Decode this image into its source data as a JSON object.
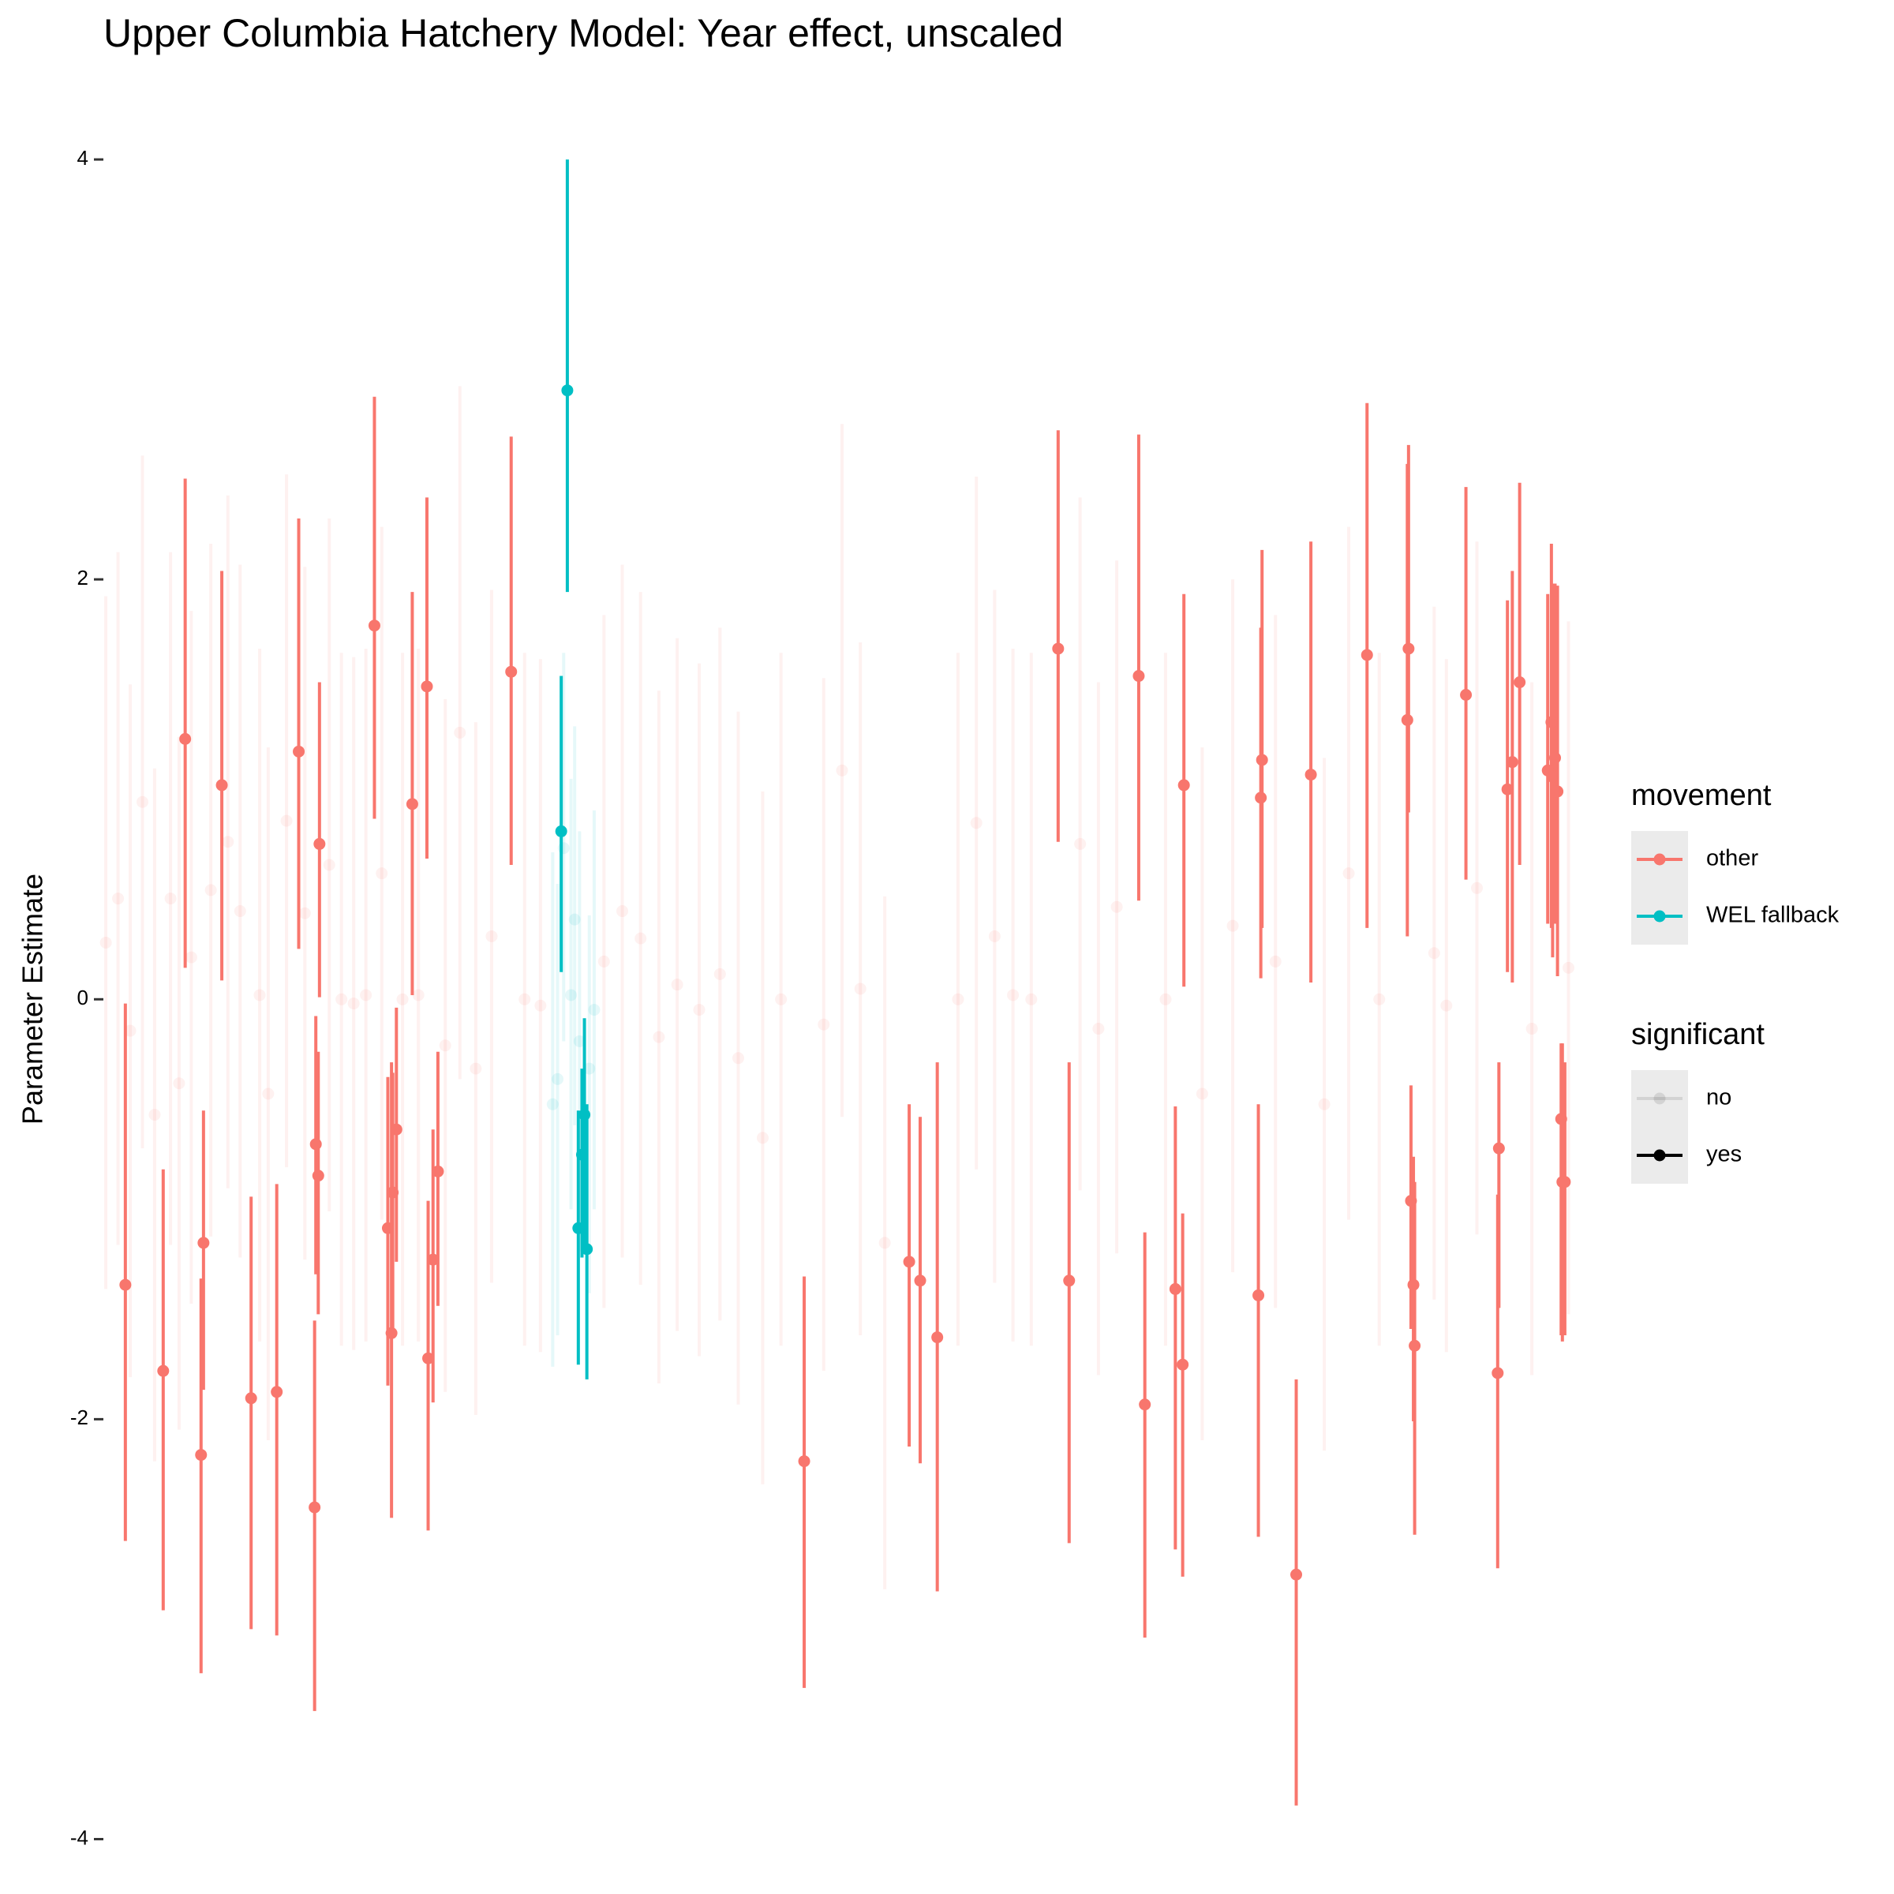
{
  "chart_data": {
    "type": "errorpoint",
    "title": "Upper Columbia Hatchery Model: Year effect, unscaled",
    "y_label": "Parameter Estimate",
    "ylim": [
      -4.22,
      4.41
    ],
    "yticks": [
      -4,
      -2,
      0,
      2,
      4
    ],
    "xlim": [
      0,
      1210
    ],
    "grid": false,
    "legend_position": "right",
    "legends": [
      {
        "title": "movement",
        "entries": [
          {
            "label": "other",
            "color": "#F8766D",
            "alpha": 1
          },
          {
            "label": "WEL fallback",
            "color": "#00BFC4",
            "alpha": 1
          }
        ]
      },
      {
        "title": "significant",
        "entries": [
          {
            "label": "no",
            "color": "#000000",
            "alpha": 0.1
          },
          {
            "label": "yes",
            "color": "#000000",
            "alpha": 1
          }
        ]
      }
    ],
    "series": [
      {
        "color": "#F8766D",
        "alpha": 0.1,
        "x": [
          2,
          12,
          22,
          32,
          42,
          55,
          62,
          72,
          88,
          102,
          112,
          128,
          135,
          150,
          165,
          185,
          195,
          205,
          215,
          228,
          245,
          258,
          280,
          292,
          305,
          318,
          345,
          358,
          410,
          425,
          440,
          455,
          470,
          488,
          505,
          520,
          540,
          555,
          590,
          605,
          620,
          640,
          700,
          715,
          730,
          745,
          760,
          800,
          815,
          830,
          870,
          900,
          925,
          960,
          1000,
          1020,
          1045,
          1090,
          1100,
          1125,
          1170,
          1200
        ],
        "values": [
          0.27,
          0.48,
          -0.15,
          0.94,
          -0.55,
          0.48,
          -0.4,
          0.2,
          0.52,
          0.75,
          0.42,
          0.02,
          -0.45,
          0.85,
          0.41,
          0.64,
          0.0,
          -0.02,
          0.02,
          0.6,
          0.0,
          0.02,
          -0.22,
          1.27,
          -0.33,
          0.3,
          0.0,
          -0.03,
          0.18,
          0.42,
          0.29,
          -0.18,
          0.07,
          -0.05,
          0.12,
          -0.28,
          -0.66,
          0.0,
          -0.12,
          1.09,
          0.05,
          -1.16,
          0.0,
          0.84,
          0.3,
          0.02,
          0.0,
          0.74,
          -0.14,
          0.44,
          0.0,
          -0.45,
          0.35,
          0.18,
          -0.5,
          0.6,
          0.0,
          0.22,
          -0.03,
          0.53,
          -0.14,
          0.15
        ],
        "lower": [
          -1.38,
          -1.17,
          -1.8,
          -0.71,
          -2.2,
          -1.17,
          -2.05,
          -1.45,
          -1.13,
          -0.9,
          -1.23,
          -1.63,
          -2.1,
          -0.8,
          -1.24,
          -1.01,
          -1.65,
          -1.67,
          -1.63,
          -1.05,
          -1.65,
          -1.63,
          -1.87,
          -0.38,
          -1.98,
          -1.35,
          -1.65,
          -1.68,
          -1.47,
          -1.23,
          -1.36,
          -1.83,
          -1.58,
          -1.7,
          -1.53,
          -1.93,
          -2.31,
          -1.65,
          -1.77,
          -0.56,
          -1.6,
          -2.81,
          -1.65,
          -0.81,
          -1.35,
          -1.63,
          -1.65,
          -0.91,
          -1.79,
          -1.21,
          -1.65,
          -2.1,
          -1.3,
          -1.47,
          -2.15,
          -1.05,
          -1.65,
          -1.43,
          -1.68,
          -1.12,
          -1.79,
          -1.5
        ],
        "upper": [
          1.92,
          2.13,
          1.5,
          2.59,
          1.1,
          2.13,
          1.25,
          1.85,
          2.17,
          2.4,
          2.07,
          1.67,
          1.2,
          2.5,
          2.06,
          2.29,
          1.65,
          1.63,
          1.67,
          2.25,
          1.65,
          1.67,
          1.43,
          2.92,
          1.32,
          1.95,
          1.65,
          1.62,
          1.83,
          2.07,
          1.94,
          1.47,
          1.72,
          1.6,
          1.77,
          1.37,
          0.99,
          1.65,
          1.53,
          2.74,
          1.7,
          0.49,
          1.65,
          2.49,
          1.95,
          1.67,
          1.65,
          2.39,
          1.51,
          2.09,
          1.65,
          1.2,
          2.0,
          1.83,
          1.15,
          2.25,
          1.65,
          1.87,
          1.62,
          2.18,
          1.51,
          1.8
        ]
      },
      {
        "color": "#00BFC4",
        "alpha": 0.1,
        "x": [
          368,
          372,
          377,
          383,
          386,
          390,
          398,
          402
        ],
        "values": [
          -0.5,
          -0.38,
          0.72,
          0.02,
          0.38,
          -0.2,
          -0.33,
          -0.05
        ],
        "lower": [
          -1.75,
          -1.6,
          -0.2,
          -1.0,
          -0.6,
          -1.2,
          -1.4,
          -1.0
        ],
        "upper": [
          0.7,
          0.55,
          1.65,
          1.05,
          1.3,
          0.8,
          0.4,
          0.9
        ]
      },
      {
        "color": "#F8766D",
        "alpha": 1,
        "x": [
          18,
          49,
          67,
          80,
          82,
          97,
          121,
          142,
          160,
          173,
          174,
          176,
          177,
          222,
          233,
          236,
          237,
          240,
          253,
          265,
          266,
          270,
          274,
          334,
          574,
          660,
          669,
          683,
          782,
          791,
          848,
          853,
          878,
          884,
          885,
          946,
          948,
          949,
          977,
          989,
          1035,
          1068,
          1069,
          1071,
          1073,
          1074,
          1116,
          1142,
          1143,
          1150,
          1154,
          1160,
          1183,
          1186,
          1187,
          1189,
          1191,
          1194,
          1195,
          1197
        ],
        "values": [
          -1.36,
          -1.77,
          1.24,
          -2.17,
          -1.16,
          1.02,
          -1.9,
          -1.87,
          1.18,
          -2.42,
          -0.69,
          -0.84,
          0.74,
          1.78,
          -1.09,
          -1.59,
          -0.92,
          -0.62,
          0.93,
          1.49,
          -1.71,
          -1.24,
          -0.82,
          1.56,
          -2.2,
          -1.25,
          -1.34,
          -1.61,
          1.67,
          -1.34,
          1.54,
          -1.93,
          -1.38,
          -1.74,
          1.02,
          -1.41,
          0.96,
          1.14,
          -2.74,
          1.07,
          1.64,
          1.33,
          1.67,
          -0.96,
          -1.36,
          -1.65,
          1.45,
          -1.78,
          -0.71,
          1.0,
          1.13,
          1.51,
          1.09,
          1.32,
          1.06,
          1.15,
          0.99,
          -0.57,
          -0.87,
          -0.87
        ],
        "lower": [
          -2.58,
          -2.91,
          0.15,
          -3.21,
          -1.86,
          0.09,
          -3.0,
          -3.03,
          0.24,
          -3.39,
          -1.31,
          -1.5,
          0.01,
          0.86,
          -1.84,
          -2.47,
          -1.6,
          -1.25,
          0.02,
          0.67,
          -2.53,
          -1.92,
          -1.46,
          0.64,
          -3.28,
          -2.13,
          -2.21,
          -2.82,
          0.75,
          -2.59,
          0.47,
          -3.04,
          -2.62,
          -2.75,
          0.06,
          -2.56,
          0.1,
          0.34,
          -3.84,
          0.08,
          0.34,
          0.3,
          0.89,
          -1.57,
          -2.01,
          -2.55,
          0.57,
          -2.71,
          -1.47,
          0.13,
          0.08,
          0.64,
          0.36,
          0.34,
          0.2,
          0.36,
          0.11,
          -1.6,
          -1.63,
          -1.6
        ],
        "upper": [
          -0.02,
          -0.81,
          2.48,
          -1.33,
          -0.53,
          2.04,
          -0.94,
          -0.88,
          2.29,
          -1.53,
          -0.08,
          -0.25,
          1.51,
          2.87,
          -0.37,
          -0.3,
          -0.35,
          -0.04,
          1.94,
          2.39,
          -0.96,
          -0.62,
          -0.25,
          2.68,
          -1.32,
          -0.5,
          -0.56,
          -0.3,
          2.71,
          -0.3,
          2.69,
          -1.11,
          -0.51,
          -1.02,
          1.93,
          -0.5,
          1.77,
          2.14,
          -1.81,
          2.18,
          2.84,
          2.55,
          2.64,
          -0.41,
          -0.75,
          -0.87,
          2.44,
          -0.93,
          -0.3,
          1.9,
          2.04,
          2.46,
          1.93,
          2.17,
          1.98,
          1.98,
          1.97,
          -0.21,
          -0.21,
          -0.3
        ]
      },
      {
        "color": "#00BFC4",
        "alpha": 1,
        "x": [
          380,
          375,
          389,
          392,
          394,
          396
        ],
        "values": [
          2.9,
          0.8,
          -1.09,
          -0.74,
          -0.55,
          -1.19
        ],
        "lower": [
          1.94,
          0.13,
          -1.74,
          -1.23,
          -1.17,
          -1.81
        ],
        "upper": [
          4.0,
          1.54,
          -0.53,
          -0.33,
          -0.09,
          -0.5
        ]
      }
    ]
  }
}
